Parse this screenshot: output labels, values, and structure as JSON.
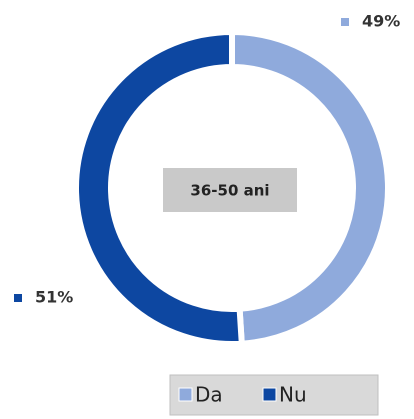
{
  "chart_data": {
    "type": "donut",
    "categories": [
      "Da",
      "Nu"
    ],
    "values": [
      49,
      51
    ],
    "value_labels": [
      "49%",
      "51%"
    ],
    "colors": [
      "#8faadc",
      "#0d47a1"
    ],
    "center_label": "36-50 ani",
    "legend": "bottom"
  }
}
